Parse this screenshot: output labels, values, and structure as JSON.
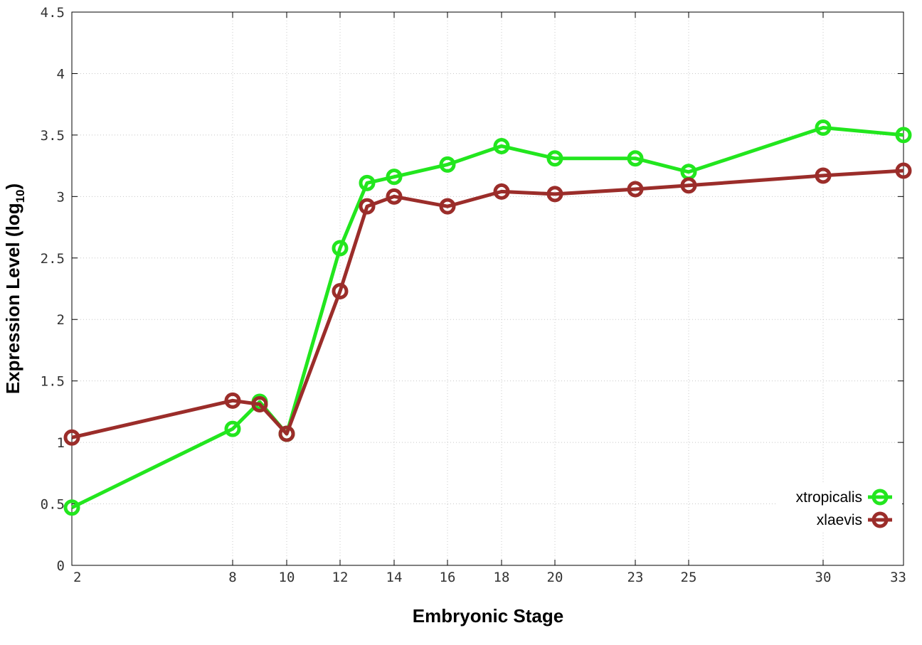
{
  "chart_data": {
    "type": "line",
    "xlabel": "Embryonic Stage",
    "ylabel_main": "Expression Level (log",
    "ylabel_sub": "10",
    "ylabel_end": ")",
    "ylim": [
      0,
      4.5
    ],
    "x_ticks": [
      2,
      8,
      10,
      12,
      14,
      16,
      18,
      20,
      23,
      25,
      30,
      33
    ],
    "x_tick_labels": [
      "2",
      "8",
      "10",
      "12",
      "14",
      "16",
      "18",
      "20",
      "23",
      "25",
      "30",
      "33"
    ],
    "y_ticks": [
      0,
      0.5,
      1,
      1.5,
      2,
      2.5,
      3,
      3.5,
      4,
      4.5
    ],
    "y_tick_labels": [
      "0",
      "0.5",
      "1",
      "1.5",
      "2",
      "2.5",
      "3",
      "3.5",
      "4",
      "4.5"
    ],
    "grid": true,
    "legend_position": "bottom-right",
    "series": [
      {
        "name": "xtropicalis",
        "color": "#22e61e",
        "x": [
          2,
          8,
          9,
          10,
          12,
          13,
          14,
          16,
          18,
          20,
          23,
          25,
          30,
          33
        ],
        "values": [
          0.47,
          1.11,
          1.33,
          1.07,
          2.58,
          3.11,
          3.16,
          3.26,
          3.41,
          3.31,
          3.31,
          3.2,
          3.56,
          3.5
        ]
      },
      {
        "name": "xlaevis",
        "color": "#9b2d2a",
        "x": [
          2,
          8,
          9,
          10,
          12,
          13,
          14,
          16,
          18,
          20,
          23,
          25,
          30,
          33
        ],
        "values": [
          1.04,
          1.34,
          1.31,
          1.07,
          2.23,
          2.92,
          3.0,
          2.92,
          3.04,
          3.02,
          3.06,
          3.09,
          3.17,
          3.21
        ]
      }
    ]
  }
}
